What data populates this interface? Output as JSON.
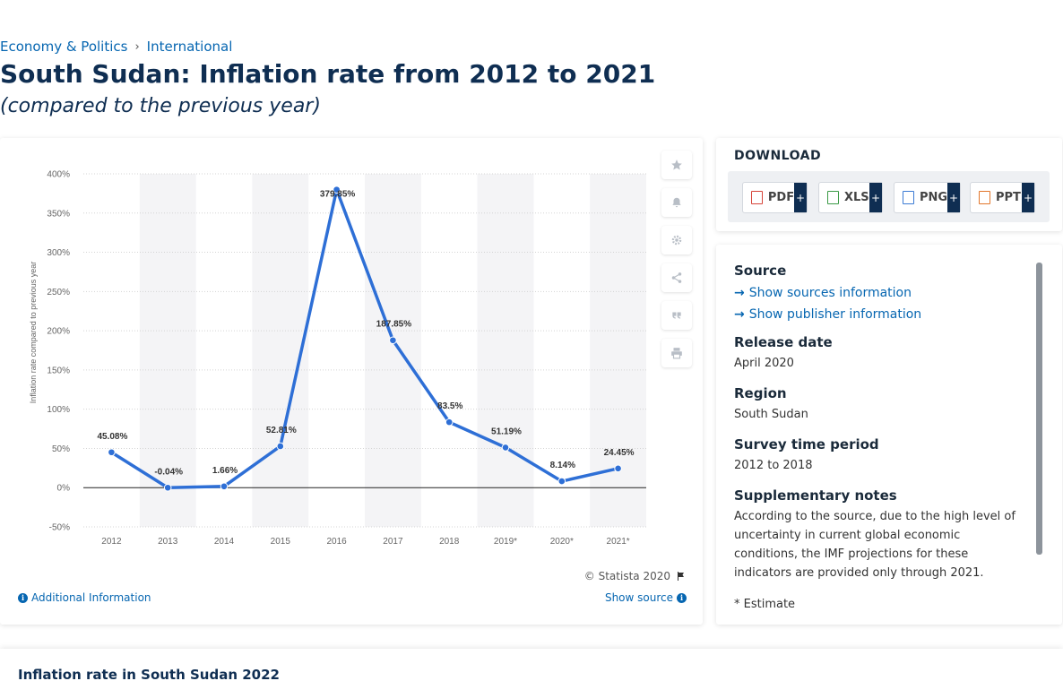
{
  "breadcrumb": {
    "items": [
      "Economy & Politics",
      "International"
    ],
    "separator": "›"
  },
  "title": "South Sudan: Inflation rate from 2012 to 2021",
  "subtitle": "(compared to the previous year)",
  "chart_data": {
    "type": "line",
    "title": "",
    "ylabel": "Inflation rate compared to previous year",
    "xlabel": "",
    "categories": [
      "2012",
      "2013",
      "2014",
      "2015",
      "2016",
      "2017",
      "2018",
      "2019*",
      "2020*",
      "2021*"
    ],
    "series": [
      {
        "values": [
          45.08,
          -0.04,
          1.66,
          52.81,
          379.85,
          187.85,
          83.5,
          51.19,
          8.14,
          24.45
        ],
        "labels": [
          "45.08%",
          "-0.04%",
          "1.66%",
          "52.81%",
          "379.85%",
          "187.85%",
          "83.5%",
          "51.19%",
          "8.14%",
          "24.45%"
        ]
      }
    ],
    "ylim": [
      -50,
      400
    ],
    "yticks": [
      -50,
      0,
      50,
      100,
      150,
      200,
      250,
      300,
      350,
      400
    ],
    "ytick_labels": [
      "-50%",
      "0%",
      "50%",
      "100%",
      "150%",
      "200%",
      "250%",
      "300%",
      "350%",
      "400%"
    ],
    "grid": true,
    "line_color": "#2e6fd6",
    "band_color": "#f4f4f6"
  },
  "chart_footer": {
    "copyright": "© Statista 2020",
    "additional_info": "Additional Information",
    "show_source": "Show source"
  },
  "download": {
    "title": "DOWNLOAD",
    "buttons": [
      {
        "label": "PDF",
        "color": "#d6443a"
      },
      {
        "label": "XLS",
        "color": "#3a9a45"
      },
      {
        "label": "PNG",
        "color": "#3b7bd4"
      },
      {
        "label": "PPT",
        "color": "#e2762a"
      }
    ],
    "plus": "+"
  },
  "info": {
    "source_heading": "Source",
    "show_sources": "Show sources information",
    "show_publisher": "Show publisher information",
    "release_date_heading": "Release date",
    "release_date": "April 2020",
    "region_heading": "Region",
    "region": "South Sudan",
    "survey_period_heading": "Survey time period",
    "survey_period": "2012 to 2018",
    "supplementary_heading": "Supplementary notes",
    "supplementary": "According to the source, due to the high level of uncertainty in current global economic conditions, the IMF projections for these indicators are provided only through 2021.",
    "estimate_note": "* Estimate"
  },
  "bottom": {
    "title": "Inflation rate in South Sudan 2022"
  }
}
